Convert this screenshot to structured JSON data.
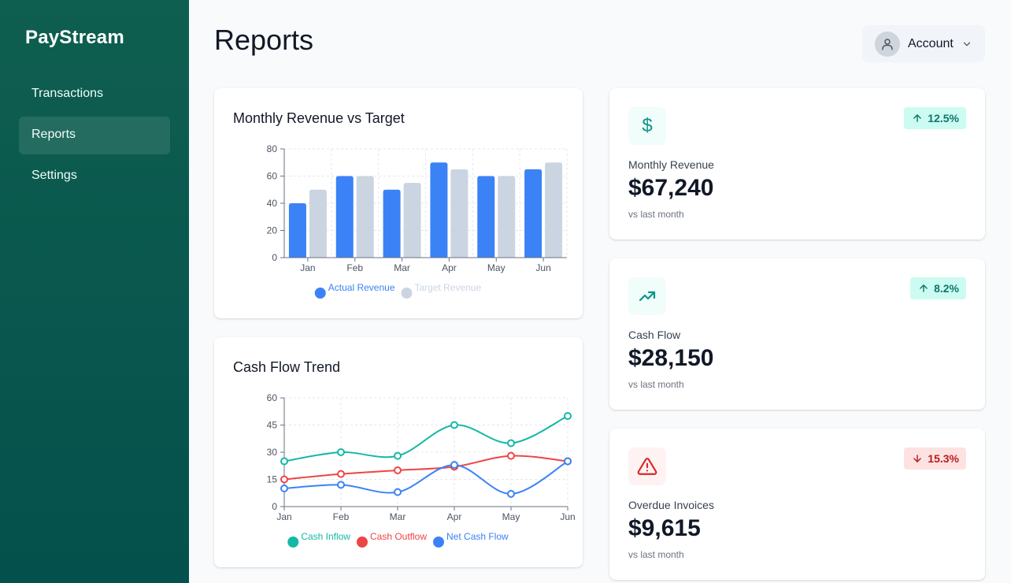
{
  "app": {
    "brand": "PayStream"
  },
  "sidebar": {
    "items": [
      {
        "label": "Transactions",
        "active": false
      },
      {
        "label": "Reports",
        "active": true
      },
      {
        "label": "Settings",
        "active": false
      }
    ]
  },
  "header": {
    "title": "Reports",
    "account_label": "Account"
  },
  "colors": {
    "brand": "#0f5f50",
    "actual": "#3b82f6",
    "target": "#cbd5e1",
    "inflow": "#14b8a6",
    "outflow": "#ef4444",
    "net": "#3b82f6"
  },
  "chart_data": [
    {
      "type": "bar",
      "title": "Monthly Revenue vs Target",
      "categories": [
        "Jan",
        "Feb",
        "Mar",
        "Apr",
        "May",
        "Jun"
      ],
      "series": [
        {
          "name": "Actual Revenue",
          "values": [
            40,
            60,
            50,
            70,
            60,
            65
          ]
        },
        {
          "name": "Target Revenue",
          "values": [
            50,
            60,
            55,
            65,
            60,
            70
          ]
        }
      ],
      "ylim": [
        0,
        80
      ],
      "yticks": [
        0,
        20,
        40,
        60,
        80
      ],
      "grid": true,
      "legend": "bottom"
    },
    {
      "type": "line",
      "title": "Cash Flow Trend",
      "categories": [
        "Jan",
        "Feb",
        "Mar",
        "Apr",
        "May",
        "Jun"
      ],
      "series": [
        {
          "name": "Cash Inflow",
          "values": [
            25,
            30,
            28,
            45,
            35,
            50
          ]
        },
        {
          "name": "Cash Outflow",
          "values": [
            15,
            18,
            20,
            22,
            28,
            25
          ]
        },
        {
          "name": "Net Cash Flow",
          "values": [
            10,
            12,
            8,
            23,
            7,
            25
          ]
        }
      ],
      "ylim": [
        0,
        60
      ],
      "yticks": [
        0,
        15,
        30,
        45,
        60
      ],
      "grid": true,
      "legend": "bottom"
    }
  ],
  "stats": [
    {
      "label": "Monthly Revenue",
      "value": "$67,240",
      "sub": "vs last month",
      "change": "12.5%",
      "direction": "up",
      "icon": "dollar-icon"
    },
    {
      "label": "Cash Flow",
      "value": "$28,150",
      "sub": "vs last month",
      "change": "8.2%",
      "direction": "up",
      "icon": "trending-up-icon"
    },
    {
      "label": "Overdue Invoices",
      "value": "$9,615",
      "sub": "vs last month",
      "change": "15.3%",
      "direction": "down",
      "icon": "alert-triangle-icon"
    }
  ]
}
